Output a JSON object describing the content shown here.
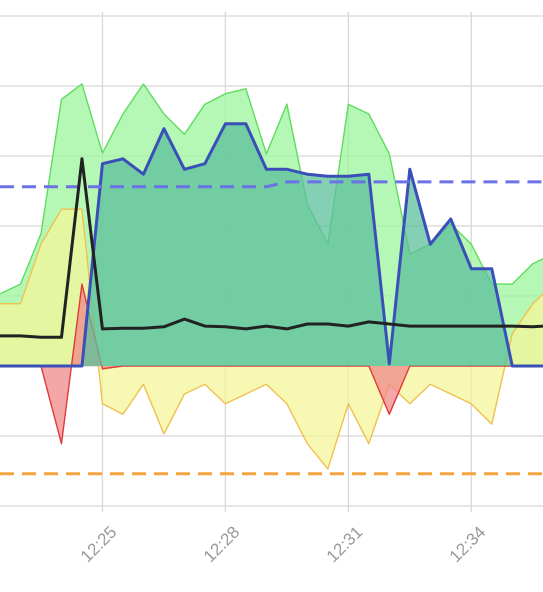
{
  "chart_data": {
    "type": "area",
    "x": [
      742.5,
      743,
      743.5,
      744,
      744.5,
      745,
      745.5,
      746,
      746.5,
      747,
      747.5,
      748,
      748.5,
      749,
      749.5,
      750,
      750.5,
      751,
      751.5,
      752,
      752.5,
      753,
      753.5,
      754,
      754.5,
      755,
      755.5,
      755.75
    ],
    "xlim": [
      742.5,
      755.75
    ],
    "xticks": [
      {
        "value": 745,
        "label": "12:25"
      },
      {
        "value": 748,
        "label": "12:28"
      },
      {
        "value": 751,
        "label": "12:31"
      },
      {
        "value": 754,
        "label": "12:34"
      }
    ],
    "ylim": [
      -2.2,
      5.2
    ],
    "yticks": [
      -2,
      -1,
      0,
      1,
      2,
      3,
      4,
      5
    ],
    "grid": true,
    "series": [
      {
        "color": "#5fdc5f",
        "fill": "#9cf59c",
        "values": [
          1.03,
          1.17,
          1.89,
          3.81,
          4.03,
          3.04,
          3.6,
          4.03,
          3.6,
          3.31,
          3.74,
          3.89,
          3.96,
          3.03,
          3.74,
          2.31,
          1.74,
          3.74,
          3.6,
          3.03,
          1.6,
          1.74,
          2.03,
          1.74,
          1.17,
          1.17,
          1.46,
          1.53
        ]
      },
      {
        "color": "#f0c050",
        "fill": "#f4f59a",
        "values": [
          0.89,
          0.89,
          1.74,
          2.24,
          2.24,
          -0.54,
          -0.69,
          -0.26,
          -0.97,
          -0.4,
          -0.26,
          -0.54,
          -0.4,
          -0.26,
          -0.54,
          -1.11,
          -1.47,
          -0.54,
          -1.11,
          -0.26,
          -0.54,
          -0.26,
          -0.4,
          -0.54,
          -0.83,
          0.46,
          0.89,
          1.03
        ]
      },
      {
        "color": "#e03a3a",
        "fill": "#f08a8a",
        "values": [
          0,
          0,
          0,
          -1.11,
          1.17,
          -0.04,
          0,
          0,
          0,
          0,
          0,
          0,
          0,
          0,
          0,
          0,
          0,
          0,
          0,
          -0.69,
          0,
          0,
          0,
          0,
          0,
          0,
          0,
          0
        ]
      },
      {
        "color": "#3a50b8",
        "fill": "#5cbf9c",
        "values": [
          0,
          0,
          0,
          0,
          0,
          2.89,
          2.96,
          2.74,
          3.39,
          2.81,
          2.89,
          3.46,
          3.46,
          2.81,
          2.81,
          2.74,
          2.71,
          2.71,
          2.74,
          0.03,
          2.81,
          1.74,
          2.1,
          1.39,
          1.39,
          0,
          0,
          0
        ]
      },
      {
        "color": "#6a72e6",
        "dash": true,
        "values": [
          2.56,
          2.56,
          2.56,
          2.56,
          2.56,
          2.56,
          2.56,
          2.56,
          2.56,
          2.56,
          2.56,
          2.56,
          2.56,
          2.56,
          2.63,
          2.63,
          2.63,
          2.63,
          2.63,
          2.63,
          2.63,
          2.63,
          2.63,
          2.63,
          2.63,
          2.63,
          2.63,
          2.63
        ]
      },
      {
        "color": "#f5a540",
        "dash": true,
        "values": [
          -1.54,
          -1.54,
          -1.54,
          -1.54,
          -1.54,
          -1.54,
          -1.54,
          -1.54,
          -1.54,
          -1.54,
          -1.54,
          -1.54,
          -1.54,
          -1.54,
          -1.54,
          -1.54,
          -1.54,
          -1.54,
          -1.54,
          -1.54,
          -1.54,
          -1.54,
          -1.54,
          -1.54,
          -1.54,
          -1.54,
          -1.54,
          -1.54
        ]
      },
      {
        "color": "#222222",
        "values": [
          0.43,
          0.43,
          0.41,
          0.41,
          2.96,
          0.53,
          0.54,
          0.54,
          0.56,
          0.67,
          0.57,
          0.56,
          0.53,
          0.57,
          0.53,
          0.6,
          0.6,
          0.57,
          0.63,
          0.6,
          0.57,
          0.57,
          0.57,
          0.57,
          0.57,
          0.57,
          0.56,
          0.57
        ]
      }
    ]
  }
}
